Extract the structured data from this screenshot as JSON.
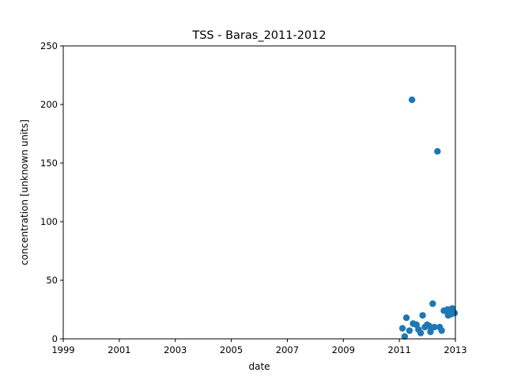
{
  "chart_data": {
    "type": "scatter",
    "title": "TSS - Baras_2011-2012",
    "xlabel": "date",
    "ylabel": "concentration [unknown units]",
    "xlim": [
      1999,
      2013
    ],
    "ylim": [
      0,
      250
    ],
    "x_ticks": [
      1999,
      2001,
      2003,
      2005,
      2007,
      2009,
      2011,
      2013
    ],
    "x_tick_labels": [
      "1999",
      "2001",
      "2003",
      "2005",
      "2007",
      "2009",
      "2011",
      "2013"
    ],
    "y_ticks": [
      0,
      50,
      100,
      150,
      200,
      250
    ],
    "y_tick_labels": [
      "0",
      "50",
      "100",
      "150",
      "200",
      "250"
    ],
    "grid": false,
    "marker_color": "#1f77b4",
    "points": [
      {
        "x": 2011.11,
        "y": 9
      },
      {
        "x": 2011.19,
        "y": 2
      },
      {
        "x": 2011.25,
        "y": 18
      },
      {
        "x": 2011.36,
        "y": 7
      },
      {
        "x": 2011.45,
        "y": 204
      },
      {
        "x": 2011.49,
        "y": 13
      },
      {
        "x": 2011.61,
        "y": 12
      },
      {
        "x": 2011.68,
        "y": 8
      },
      {
        "x": 2011.76,
        "y": 5
      },
      {
        "x": 2011.83,
        "y": 20
      },
      {
        "x": 2011.91,
        "y": 10
      },
      {
        "x": 2011.99,
        "y": 12
      },
      {
        "x": 2012.06,
        "y": 11
      },
      {
        "x": 2012.11,
        "y": 6
      },
      {
        "x": 2012.19,
        "y": 30
      },
      {
        "x": 2012.25,
        "y": 10
      },
      {
        "x": 2012.36,
        "y": 160
      },
      {
        "x": 2012.44,
        "y": 10
      },
      {
        "x": 2012.51,
        "y": 7
      },
      {
        "x": 2012.59,
        "y": 24
      },
      {
        "x": 2012.66,
        "y": 24
      },
      {
        "x": 2012.72,
        "y": 25
      },
      {
        "x": 2012.74,
        "y": 20
      },
      {
        "x": 2012.78,
        "y": 21
      },
      {
        "x": 2012.84,
        "y": 21
      },
      {
        "x": 2012.89,
        "y": 26
      },
      {
        "x": 2012.93,
        "y": 23
      },
      {
        "x": 2012.97,
        "y": 22
      }
    ]
  }
}
